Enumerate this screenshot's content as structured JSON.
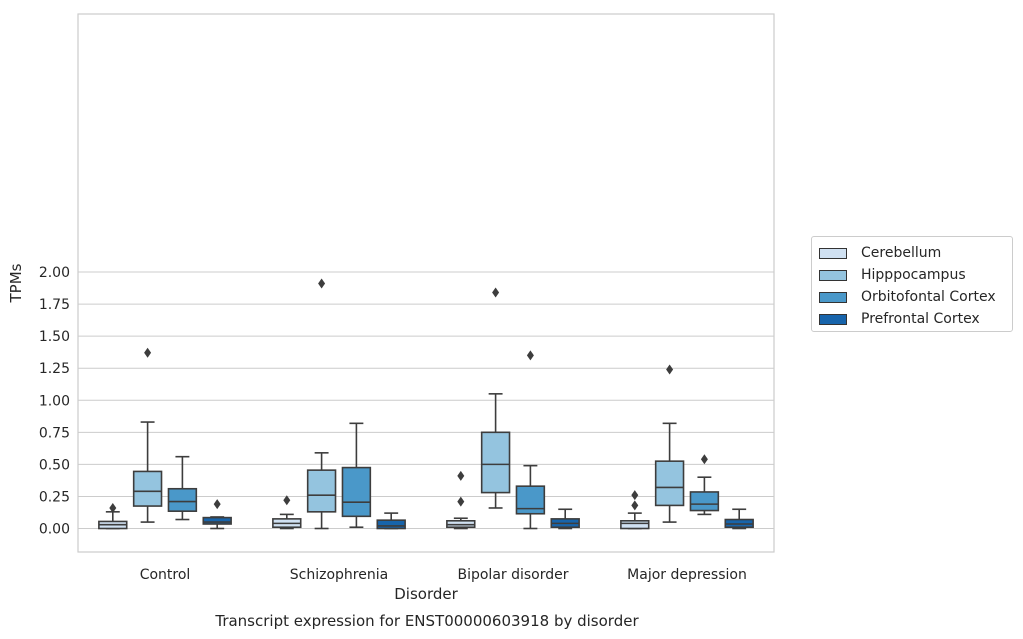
{
  "chart_data": {
    "type": "box",
    "title": "Transcript expression for ENST00000603918 by disorder",
    "xlabel": "Disorder",
    "ylabel": "TPMs",
    "ylim": [
      -0.09,
      2.01
    ],
    "yticks": [
      "0.00",
      "0.25",
      "0.50",
      "0.75",
      "1.00",
      "1.25",
      "1.50",
      "1.75",
      "2.00"
    ],
    "categories": [
      "Control",
      "Schizophrenia",
      "Bipolar disorder",
      "Major depression"
    ],
    "grid": "horizontal",
    "legend_position": "right",
    "series": [
      {
        "name": "Cerebellum",
        "color": "#d0e1f2",
        "boxes": [
          {
            "min": 0.0,
            "q1": 0.0,
            "median": 0.03,
            "q3": 0.055,
            "max": 0.13,
            "outliers": [
              0.16
            ]
          },
          {
            "min": 0.0,
            "q1": 0.01,
            "median": 0.04,
            "q3": 0.075,
            "max": 0.11,
            "outliers": [
              0.22
            ]
          },
          {
            "min": 0.0,
            "q1": 0.01,
            "median": 0.03,
            "q3": 0.06,
            "max": 0.08,
            "outliers": [
              0.21,
              0.41
            ]
          },
          {
            "min": 0.0,
            "q1": 0.0,
            "median": 0.04,
            "q3": 0.06,
            "max": 0.12,
            "outliers": [
              0.18,
              0.26
            ]
          }
        ]
      },
      {
        "name": "Hipppocampus",
        "color": "#94c4df",
        "boxes": [
          {
            "min": 0.05,
            "q1": 0.175,
            "median": 0.29,
            "q3": 0.445,
            "max": 0.83,
            "outliers": [
              1.37
            ]
          },
          {
            "min": 0.0,
            "q1": 0.13,
            "median": 0.26,
            "q3": 0.455,
            "max": 0.59,
            "outliers": [
              1.91
            ]
          },
          {
            "min": 0.16,
            "q1": 0.28,
            "median": 0.5,
            "q3": 0.75,
            "max": 1.05,
            "outliers": [
              1.84
            ]
          },
          {
            "min": 0.05,
            "q1": 0.18,
            "median": 0.32,
            "q3": 0.525,
            "max": 0.82,
            "outliers": [
              1.24
            ]
          }
        ]
      },
      {
        "name": "Orbitofontal Cortex",
        "color": "#4a98c9",
        "boxes": [
          {
            "min": 0.07,
            "q1": 0.135,
            "median": 0.21,
            "q3": 0.31,
            "max": 0.56,
            "outliers": []
          },
          {
            "min": 0.01,
            "q1": 0.095,
            "median": 0.205,
            "q3": 0.475,
            "max": 0.82,
            "outliers": []
          },
          {
            "min": 0.0,
            "q1": 0.115,
            "median": 0.155,
            "q3": 0.33,
            "max": 0.49,
            "outliers": [
              1.35
            ]
          },
          {
            "min": 0.11,
            "q1": 0.14,
            "median": 0.19,
            "q3": 0.285,
            "max": 0.4,
            "outliers": [
              0.54
            ]
          }
        ]
      },
      {
        "name": "Prefrontal Cortex",
        "color": "#1764ab",
        "boxes": [
          {
            "min": 0.0,
            "q1": 0.035,
            "median": 0.05,
            "q3": 0.085,
            "max": 0.09,
            "outliers": [
              0.19
            ]
          },
          {
            "min": 0.0,
            "q1": 0.0,
            "median": 0.02,
            "q3": 0.065,
            "max": 0.12,
            "outliers": []
          },
          {
            "min": 0.0,
            "q1": 0.01,
            "median": 0.04,
            "q3": 0.075,
            "max": 0.15,
            "outliers": []
          },
          {
            "min": 0.0,
            "q1": 0.01,
            "median": 0.035,
            "q3": 0.07,
            "max": 0.15,
            "outliers": []
          }
        ]
      }
    ]
  }
}
